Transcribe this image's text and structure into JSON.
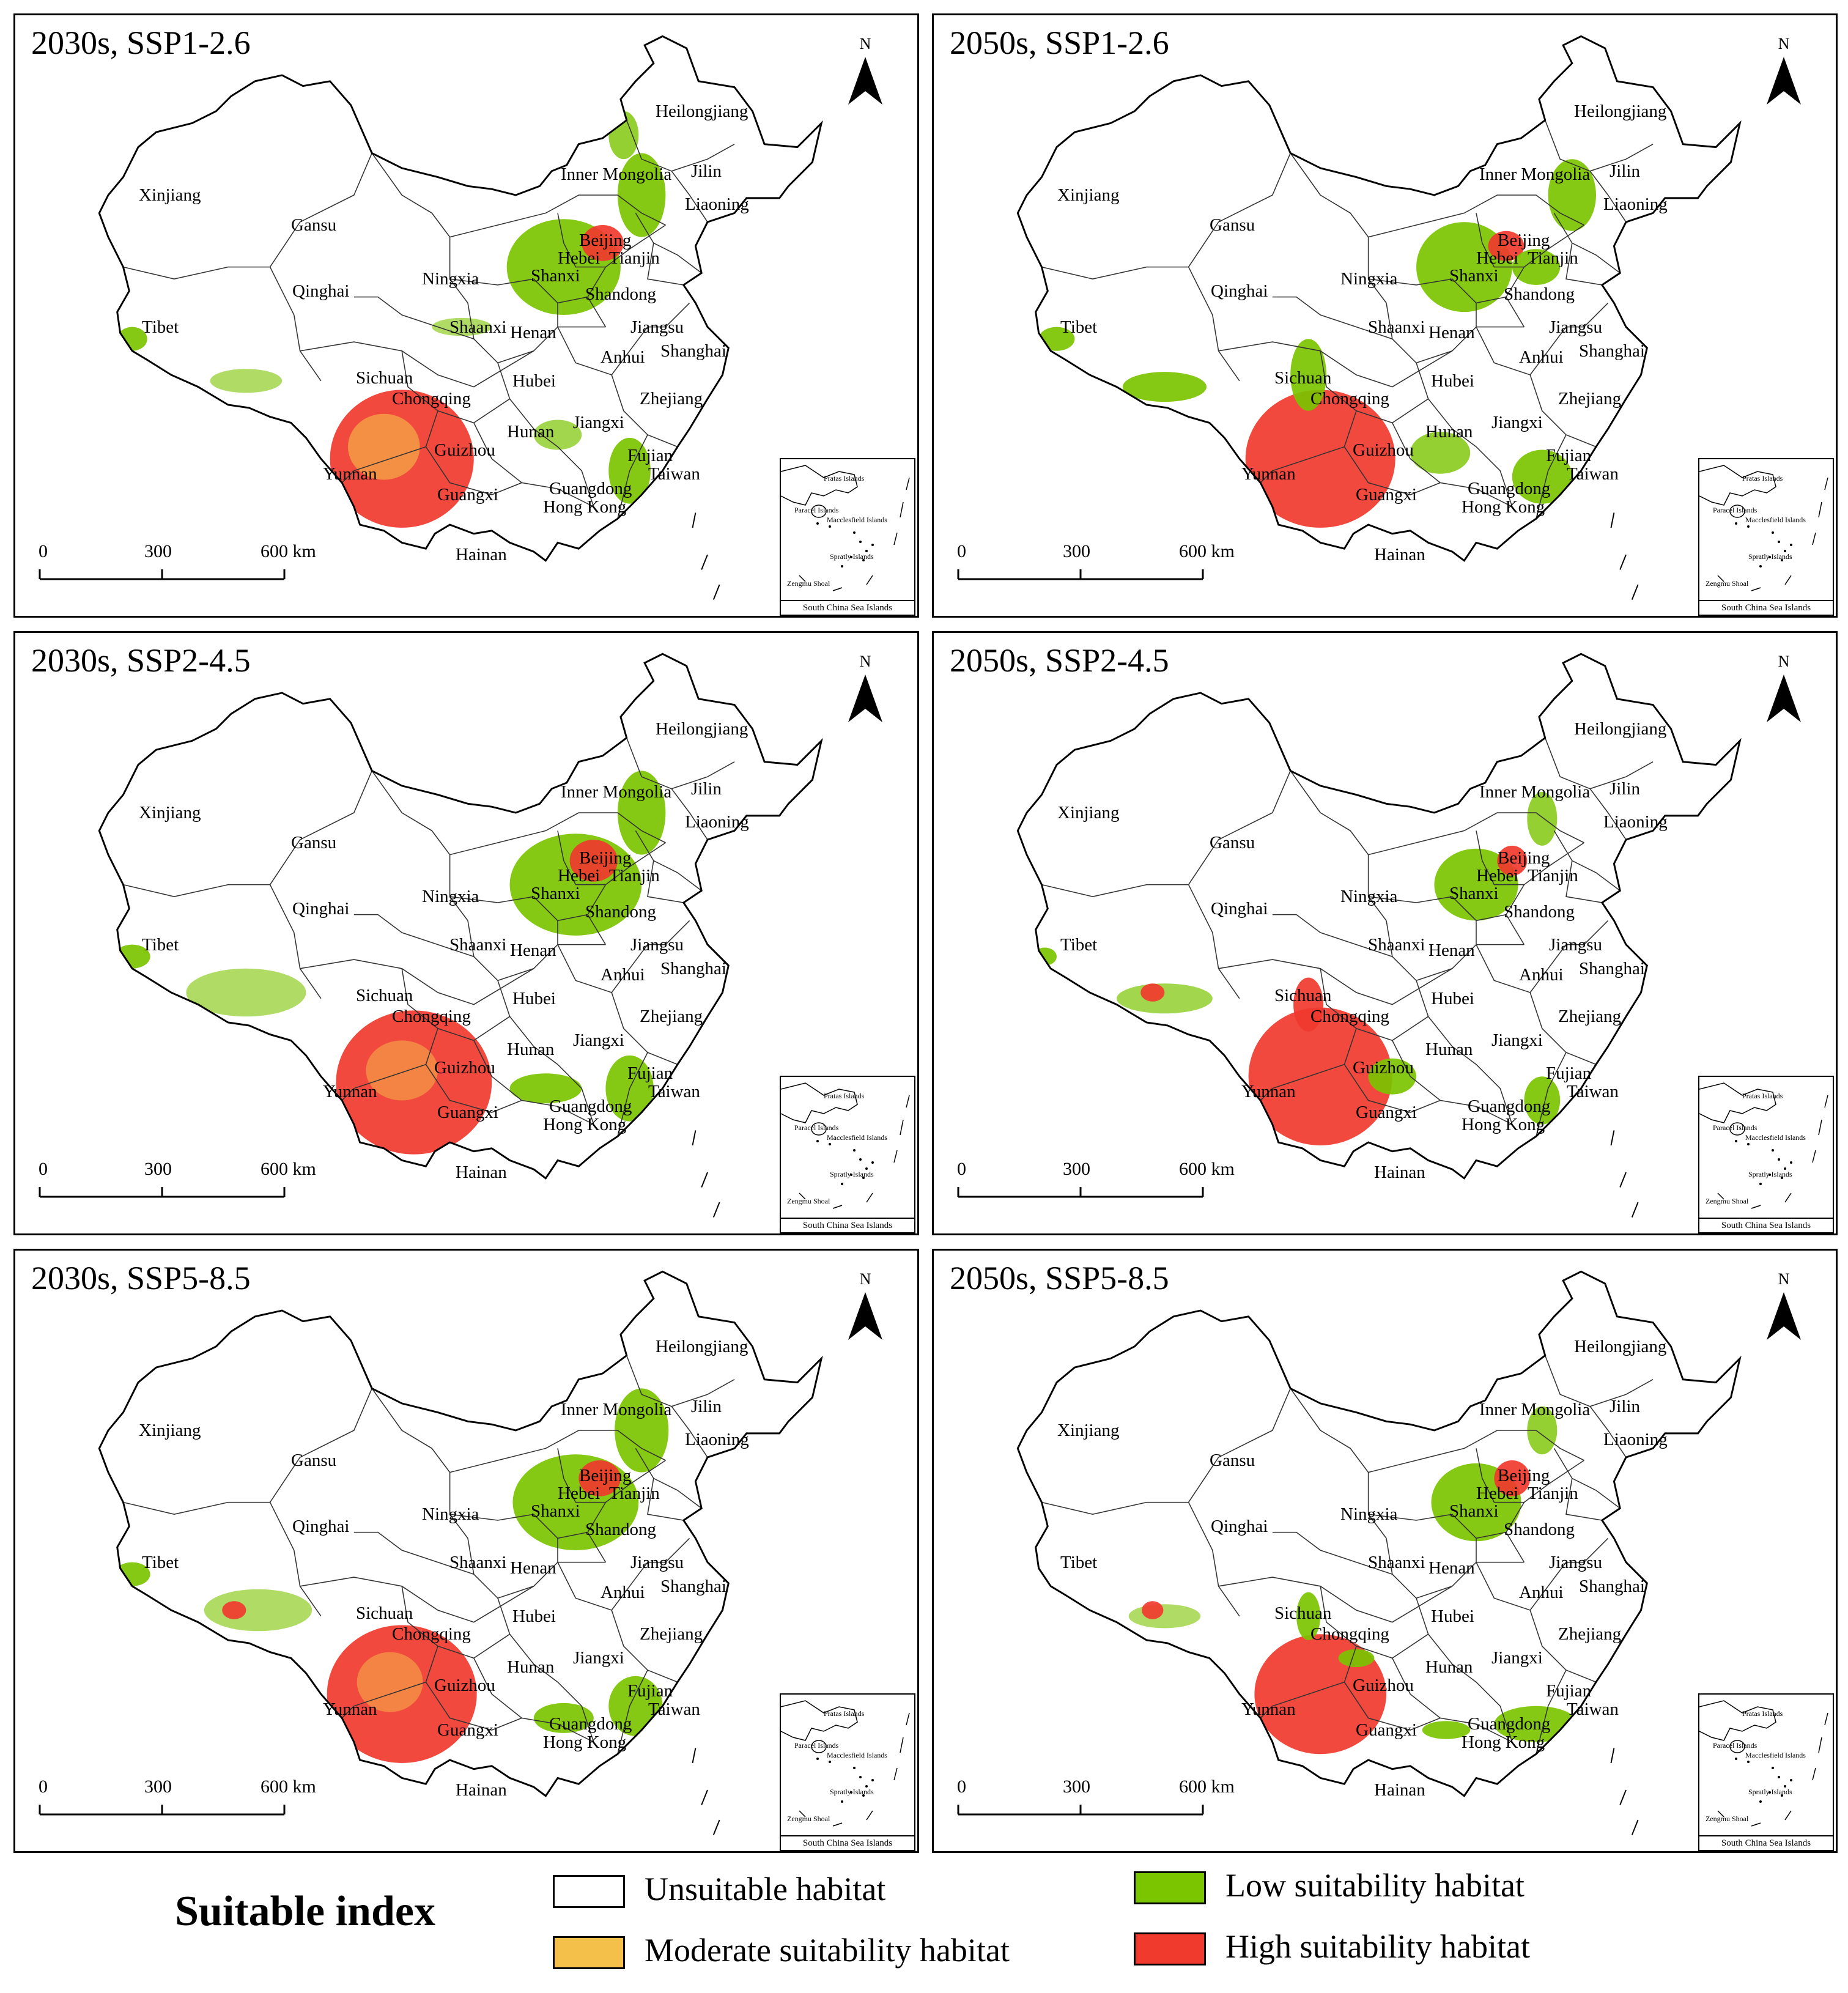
{
  "panels": [
    {
      "title": "2030s, SSP1-2.6"
    },
    {
      "title": "2050s, SSP1-2.6"
    },
    {
      "title": "2030s, SSP2-4.5"
    },
    {
      "title": "2050s, SSP2-4.5"
    },
    {
      "title": "2030s, SSP5-8.5"
    },
    {
      "title": "2050s, SSP5-8.5"
    }
  ],
  "north_label": "N",
  "scale": {
    "ticks": [
      "0",
      "300",
      "600  km"
    ]
  },
  "inset": {
    "title": "South China Sea Islands",
    "labels": [
      "Pratas Islands",
      "Paracel Islands",
      "Macclesfield Islands",
      "Spratly Islands",
      "Zengmu Shoal"
    ]
  },
  "provinces": [
    "Heilongjiang",
    "Jilin",
    "Liaoning",
    "Inner Mongolia",
    "Xinjiang",
    "Gansu",
    "Beijing",
    "Tianjin",
    "Hebei",
    "Ningxia",
    "Shanxi",
    "Qinghai",
    "Shandong",
    "Tibet",
    "Shaanxi",
    "Henan",
    "Jiangsu",
    "Shanghai",
    "Anhui",
    "Sichuan",
    "Hubei",
    "Chongqing",
    "Zhejiang",
    "Hunan",
    "Jiangxi",
    "Guizhou",
    "Fujian",
    "Yunnan",
    "Taiwan",
    "Guangxi",
    "Guangdong",
    "Hong Kong",
    "Hainan"
  ],
  "legend": {
    "title": "Suitable index",
    "items": [
      {
        "label": "Unsuitable habitat",
        "color": "#ffffff"
      },
      {
        "label": "Low suitability habitat",
        "color": "#7bc400"
      },
      {
        "label": "Moderate suitability habitat",
        "color": "#f5c04a"
      },
      {
        "label": "High suitability habitat",
        "color": "#f03a2e"
      }
    ]
  }
}
